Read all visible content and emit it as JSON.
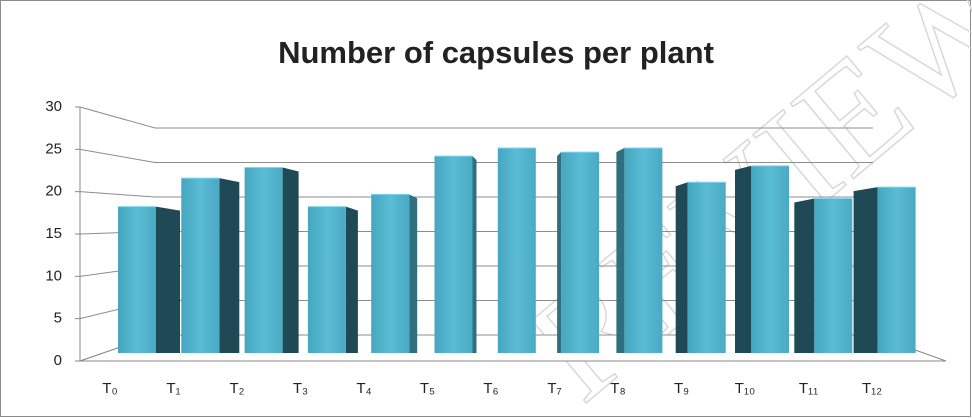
{
  "chart_data": {
    "type": "bar3d",
    "title": "Number of capsules per plant",
    "categories": [
      "T₀",
      "T₁",
      "T₂",
      "T₃",
      "T₄",
      "T₅",
      "T₆",
      "T₇",
      "T₈",
      "T₉",
      "T₁₀",
      "T₁₁",
      "T₁₂"
    ],
    "values": [
      18,
      21.5,
      22.8,
      18,
      19.5,
      24.2,
      25.2,
      24.7,
      25.2,
      21,
      23,
      19,
      20.4
    ],
    "color": "#4bacc6",
    "ylim": [
      0,
      30
    ],
    "yticks": [
      0,
      5,
      10,
      15,
      20,
      25,
      30
    ],
    "grid": true,
    "watermark": "REVIEW"
  }
}
